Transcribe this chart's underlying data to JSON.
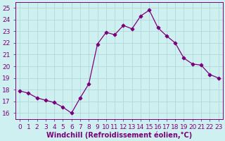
{
  "x": [
    0,
    1,
    2,
    3,
    4,
    5,
    6,
    7,
    8,
    9,
    10,
    11,
    12,
    13,
    14,
    15,
    16,
    17,
    18,
    19,
    20,
    21,
    22,
    23
  ],
  "y": [
    17.9,
    17.7,
    17.3,
    17.1,
    16.9,
    16.5,
    16.0,
    17.3,
    18.5,
    21.9,
    22.9,
    22.7,
    23.5,
    23.2,
    24.3,
    24.8,
    23.3,
    22.6,
    22.0,
    20.7,
    20.2,
    20.1,
    19.3,
    19.0
  ],
  "line_color": "#7b007b",
  "marker": "D",
  "bg_color": "#cff0f0",
  "grid_color": "#b0d8d8",
  "xlabel": "Windchill (Refroidissement éolien,°C)",
  "ylim": [
    15.5,
    25.5
  ],
  "xlim": [
    -0.5,
    23.5
  ],
  "yticks": [
    16,
    17,
    18,
    19,
    20,
    21,
    22,
    23,
    24,
    25
  ],
  "xticks": [
    0,
    1,
    2,
    3,
    4,
    5,
    6,
    7,
    8,
    9,
    10,
    11,
    12,
    13,
    14,
    15,
    16,
    17,
    18,
    19,
    20,
    21,
    22,
    23
  ],
  "tick_color": "#7b007b",
  "label_color": "#7b007b",
  "font_size": 6.5,
  "xlabel_fontsize": 7.0
}
